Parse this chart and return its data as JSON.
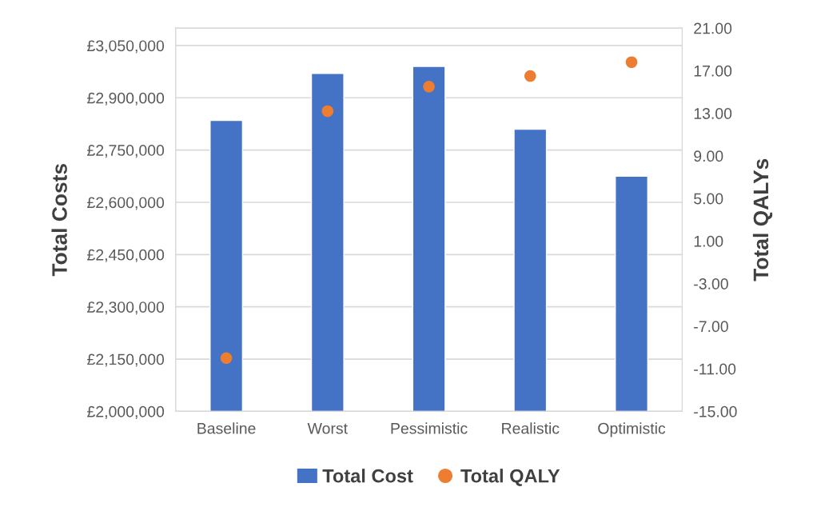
{
  "chart_data": {
    "type": "bar",
    "ylabel": "Total Costs",
    "y2label": "Total QALYs",
    "categories": [
      "Baseline",
      "Worst",
      "Pessimistic",
      "Realistic",
      "Optimistic"
    ],
    "series": [
      {
        "name": "Total Cost",
        "color": "#4472c4",
        "values": [
          2835000,
          2970000,
          2990000,
          2810000,
          2675000
        ]
      },
      {
        "name": "Total QALY",
        "type": "scatter",
        "axis": "y2",
        "color": "#ed7d31",
        "values": [
          -10.0,
          13.2,
          15.5,
          16.5,
          17.8
        ]
      }
    ],
    "ylim": [
      2000000,
      3100000
    ],
    "yticks": [
      {
        "value": 2000000,
        "label": "£2,000,000"
      },
      {
        "value": 2150000,
        "label": "£2,150,000"
      },
      {
        "value": 2300000,
        "label": "£2,300,000"
      },
      {
        "value": 2450000,
        "label": "£2,450,000"
      },
      {
        "value": 2600000,
        "label": "£2,600,000"
      },
      {
        "value": 2750000,
        "label": "£2,750,000"
      },
      {
        "value": 2900000,
        "label": "£2,900,000"
      },
      {
        "value": 3050000,
        "label": "£3,050,000"
      }
    ],
    "y2lim": [
      -15,
      21
    ],
    "y2ticks": [
      {
        "value": -15,
        "label": "-15.00"
      },
      {
        "value": -11,
        "label": "-11.00"
      },
      {
        "value": -7,
        "label": "-7.00"
      },
      {
        "value": -3,
        "label": "-3.00"
      },
      {
        "value": 1,
        "label": "1.00"
      },
      {
        "value": 5,
        "label": "5.00"
      },
      {
        "value": 9,
        "label": "9.00"
      },
      {
        "value": 13,
        "label": "13.00"
      },
      {
        "value": 17,
        "label": "17.00"
      },
      {
        "value": 21,
        "label": "21.00"
      }
    ],
    "grid": "y",
    "legend": "bottom",
    "marker": "circle"
  }
}
